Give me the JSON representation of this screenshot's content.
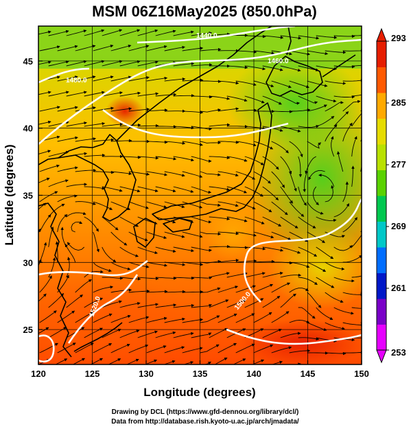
{
  "title": "MSM 06Z16May2025 (850.0hPa)",
  "x_axis_label": "Longitude (degrees)",
  "y_axis_label": "Latitude  (degrees)",
  "credits": [
    "Drawing by DCL (https://www.gfd-dennou.org/library/dcl/)",
    "Data from http://database.rish.kyoto-u.ac.jp/arch/jmadata/"
  ],
  "map": {
    "lon_range": [
      120,
      150
    ],
    "lat_range": [
      22.4,
      47.6
    ],
    "lon_ticks": [
      120,
      125,
      130,
      135,
      140,
      145,
      150
    ],
    "lat_ticks": [
      25,
      30,
      35,
      40,
      45
    ],
    "gridlines": true,
    "field": "temperature",
    "overlays": [
      "wind-streamlines",
      "geopotential-height-contours",
      "coastlines"
    ]
  },
  "colorbar": {
    "range": [
      253,
      293
    ],
    "tick_labels": [
      "293",
      "285",
      "277",
      "269",
      "261",
      "253"
    ],
    "colors": [
      "#e600ff",
      "#7a00c8",
      "#0018c8",
      "#006eff",
      "#00c8c8",
      "#00c850",
      "#5ad200",
      "#b9e100",
      "#e6dc00",
      "#ffaa00",
      "#ff5a00",
      "#e61e00"
    ]
  },
  "contours": [
    {
      "label": "1440.0"
    },
    {
      "label": "1460.0"
    },
    {
      "label": "1480.0"
    },
    {
      "label": "1500.0"
    },
    {
      "label": "1520.0"
    },
    {
      "label": "1500.0"
    }
  ]
}
